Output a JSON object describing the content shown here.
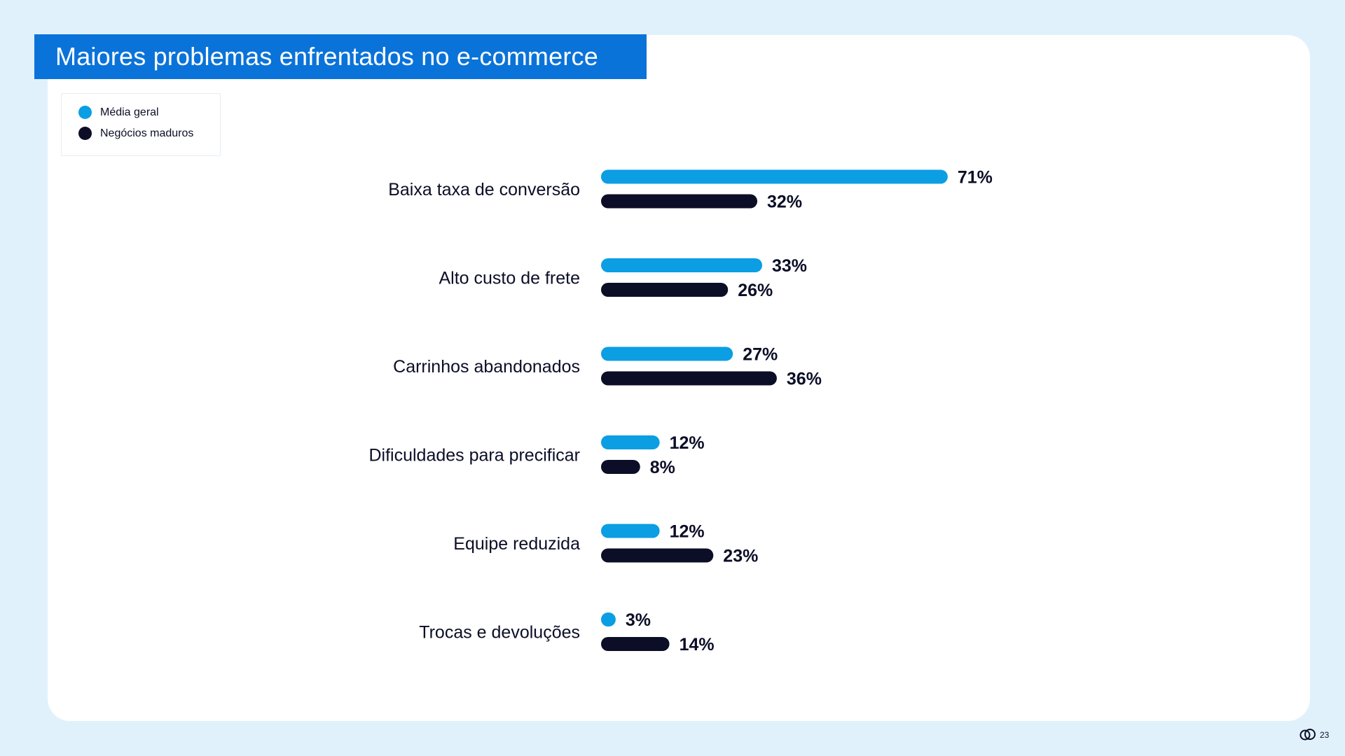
{
  "page": {
    "page_number": "23",
    "logo_icon": "cloud-logo-icon"
  },
  "colors": {
    "background": "#e1f1fc",
    "banner": "#0a73d9",
    "media_geral": "#0b9ee3",
    "negocios_maduros": "#0b0e26",
    "text": "#0b0e26"
  },
  "chart_data": {
    "type": "bar",
    "orientation": "horizontal",
    "title": "Maiores problemas enfrentados no e-commerce",
    "categories": [
      "Baixa taxa de conversão",
      "Alto custo de frete",
      "Carrinhos abandonados",
      "Dificuldades para precificar",
      "Equipe reduzida",
      "Trocas e devoluções"
    ],
    "series": [
      {
        "name": "Média geral",
        "values": [
          71,
          33,
          27,
          12,
          12,
          3
        ],
        "labels": [
          "71%",
          "33%",
          "27%",
          "12%",
          "12%",
          "3%"
        ],
        "color": "#0b9ee3"
      },
      {
        "name": "Negócios maduros",
        "values": [
          32,
          26,
          36,
          8,
          23,
          14
        ],
        "labels": [
          "32%",
          "26%",
          "36%",
          "8%",
          "23%",
          "14%"
        ],
        "color": "#0b0e26"
      }
    ],
    "unit": "%",
    "xlim": [
      0,
      71
    ],
    "grid": false,
    "legend_position": "top-left"
  }
}
